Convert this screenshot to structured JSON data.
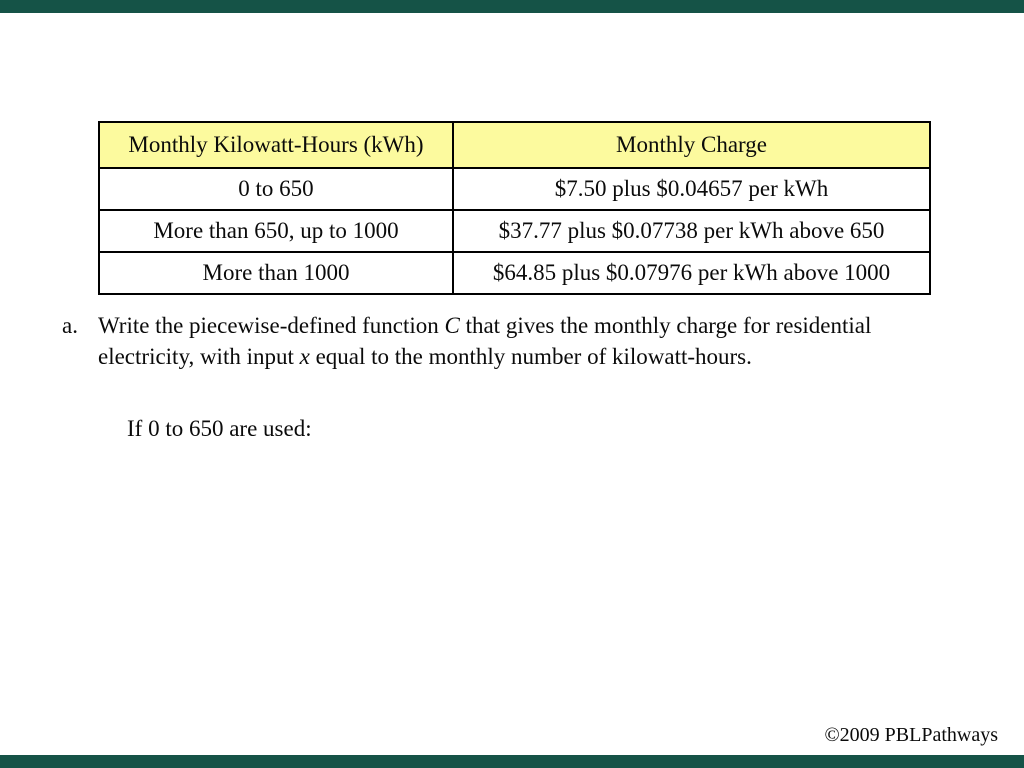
{
  "chart_data": {
    "type": "table",
    "columns": [
      "Monthly Kilowatt-Hours (kWh)",
      "Monthly Charge"
    ],
    "rows": [
      [
        "0 to 650",
        "$7.50 plus $0.04657 per kWh"
      ],
      [
        "More than 650, up to 1000",
        "$37.77 plus $0.07738 per kWh above 650"
      ],
      [
        "More than 1000",
        "$64.85 plus $0.07976 per kWh above 1000"
      ]
    ]
  },
  "question": {
    "label": "a.",
    "part1": "Write the piecewise-defined function ",
    "var1": "C",
    "part2": " that gives the monthly charge for residential electricity, with input ",
    "var2": "x",
    "part3": " equal to the monthly number of kilowatt-hours."
  },
  "prompt_line": "If 0 to 650 are used:",
  "copyright": "©2009 PBLPathways",
  "colors": {
    "accent": "#155347",
    "headerbg": "#FCFA9E",
    "border": "#000000",
    "text": "#0b0b0b"
  }
}
